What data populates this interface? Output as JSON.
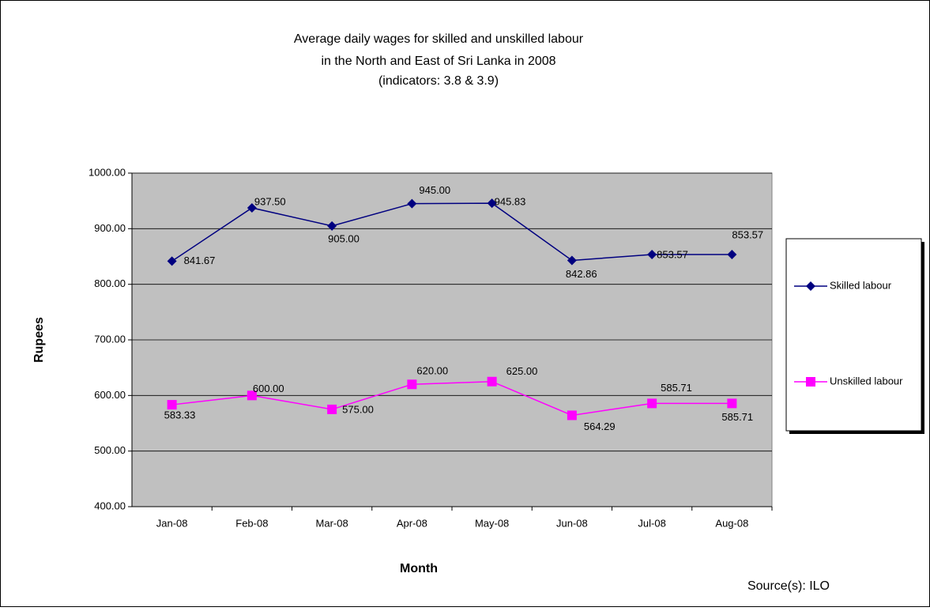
{
  "chart_data": {
    "type": "line",
    "title": [
      "Average daily wages for skilled and unskilled labour",
      "in the North and East of Sri Lanka in 2008",
      "(indicators: 3.8 & 3.9)"
    ],
    "x_label": "Month",
    "y_label": "Rupees",
    "source": "Source(s): ILO",
    "categories": [
      "Jan-08",
      "Feb-08",
      "Mar-08",
      "Apr-08",
      "May-08",
      "Jun-08",
      "Jul-08",
      "Aug-08"
    ],
    "series": [
      {
        "name": "Skilled labour",
        "color": "#000080",
        "marker": "diamond",
        "values": [
          841.67,
          937.5,
          905,
          945,
          945.83,
          842.86,
          853.57,
          853.57
        ],
        "value_labels": [
          "841.67",
          "937.50",
          "905.00",
          "945.00",
          "945.83",
          "842.86",
          "853.57",
          "853.57"
        ]
      },
      {
        "name": "Unskilled labour",
        "color": "#ff00ff",
        "marker": "square",
        "values": [
          583.33,
          600,
          575,
          620,
          625,
          564.29,
          585.71,
          585.71
        ],
        "value_labels": [
          "583.33",
          "600.00",
          "575.00",
          "620.00",
          "625.00",
          "564.29",
          "585.71",
          "585.71"
        ]
      }
    ],
    "ylim": [
      400,
      1000
    ],
    "yticks": [
      {
        "value": 400,
        "label": "400.00"
      },
      {
        "value": 500,
        "label": "500.00"
      },
      {
        "value": 600,
        "label": "600.00"
      },
      {
        "value": 700,
        "label": "700.00"
      },
      {
        "value": 800,
        "label": "800.00"
      },
      {
        "value": 900,
        "label": "900.00"
      },
      {
        "value": 1000,
        "label": "1000.00"
      }
    ],
    "grid": true,
    "legend": "right"
  }
}
